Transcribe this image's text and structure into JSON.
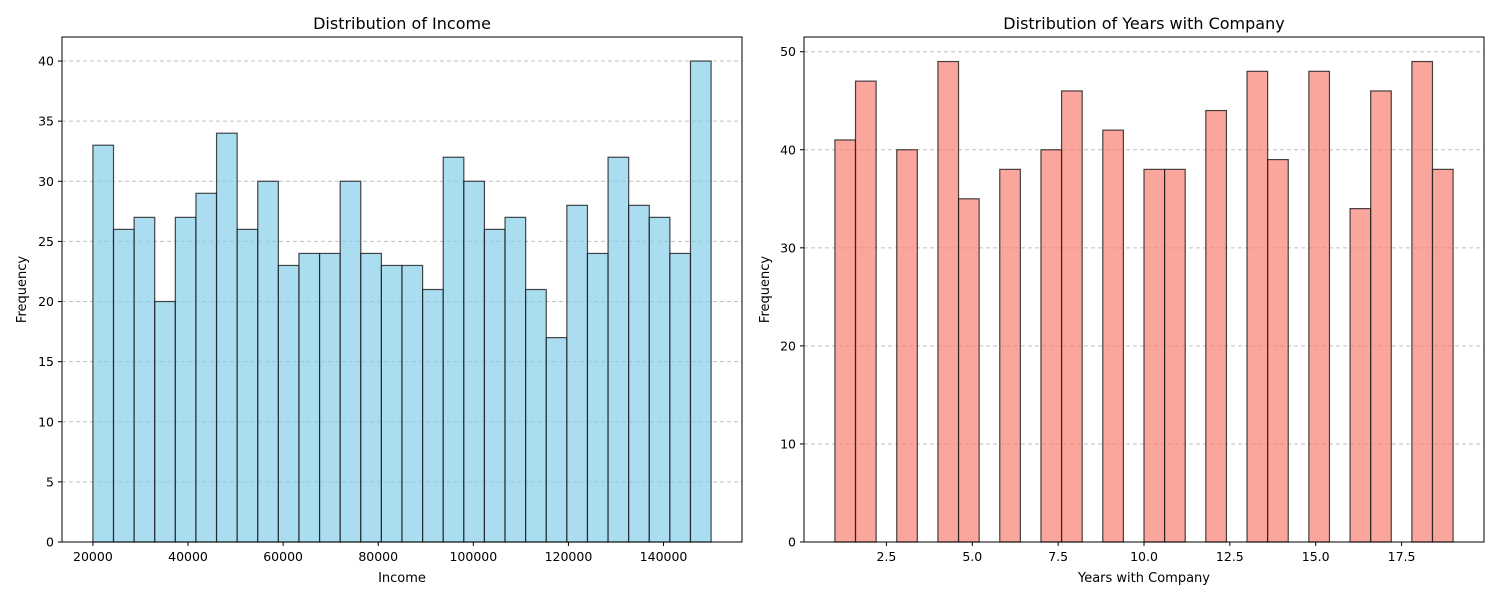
{
  "chart_data": [
    {
      "type": "bar",
      "title": "Distribution of Income",
      "xlabel": "Income",
      "ylabel": "Frequency",
      "color": "#87ceeb",
      "xlim": [
        13500,
        156500
      ],
      "ylim": [
        0,
        42
      ],
      "xticks": [
        20000,
        40000,
        60000,
        80000,
        100000,
        120000,
        140000
      ],
      "xtick_labels": [
        "20000",
        "40000",
        "60000",
        "80000",
        "100000",
        "120000",
        "140000"
      ],
      "yticks": [
        0,
        5,
        10,
        15,
        20,
        25,
        30,
        35,
        40
      ],
      "ytick_labels": [
        "0",
        "5",
        "10",
        "15",
        "20",
        "25",
        "30",
        "35",
        "40"
      ],
      "grid": "y",
      "bins": [
        {
          "x0": 20000,
          "x1": 24333,
          "value": 33
        },
        {
          "x0": 24333,
          "x1": 28667,
          "value": 26
        },
        {
          "x0": 28667,
          "x1": 33000,
          "value": 27
        },
        {
          "x0": 33000,
          "x1": 37333,
          "value": 20
        },
        {
          "x0": 37333,
          "x1": 41667,
          "value": 27
        },
        {
          "x0": 41667,
          "x1": 46000,
          "value": 29
        },
        {
          "x0": 46000,
          "x1": 50333,
          "value": 34
        },
        {
          "x0": 50333,
          "x1": 54667,
          "value": 26
        },
        {
          "x0": 54667,
          "x1": 59000,
          "value": 30
        },
        {
          "x0": 59000,
          "x1": 63333,
          "value": 23
        },
        {
          "x0": 63333,
          "x1": 67667,
          "value": 24
        },
        {
          "x0": 67667,
          "x1": 72000,
          "value": 24
        },
        {
          "x0": 72000,
          "x1": 76333,
          "value": 30
        },
        {
          "x0": 76333,
          "x1": 80667,
          "value": 24
        },
        {
          "x0": 80667,
          "x1": 85000,
          "value": 23
        },
        {
          "x0": 85000,
          "x1": 89333,
          "value": 23
        },
        {
          "x0": 89333,
          "x1": 93667,
          "value": 21
        },
        {
          "x0": 93667,
          "x1": 98000,
          "value": 32
        },
        {
          "x0": 98000,
          "x1": 102333,
          "value": 30
        },
        {
          "x0": 102333,
          "x1": 106667,
          "value": 26
        },
        {
          "x0": 106667,
          "x1": 111000,
          "value": 27
        },
        {
          "x0": 111000,
          "x1": 115333,
          "value": 21
        },
        {
          "x0": 115333,
          "x1": 119667,
          "value": 17
        },
        {
          "x0": 119667,
          "x1": 124000,
          "value": 28
        },
        {
          "x0": 124000,
          "x1": 128333,
          "value": 24
        },
        {
          "x0": 128333,
          "x1": 132667,
          "value": 32
        },
        {
          "x0": 132667,
          "x1": 137000,
          "value": 28
        },
        {
          "x0": 137000,
          "x1": 141333,
          "value": 27
        },
        {
          "x0": 141333,
          "x1": 145667,
          "value": 24
        },
        {
          "x0": 145667,
          "x1": 150000,
          "value": 40
        }
      ]
    },
    {
      "type": "bar",
      "title": "Distribution of Years with Company",
      "xlabel": "Years with Company",
      "ylabel": "Frequency",
      "color": "#fa8072",
      "xlim": [
        0.1,
        19.9
      ],
      "ylim": [
        0,
        51.5
      ],
      "xticks": [
        2.5,
        5.0,
        7.5,
        10.0,
        12.5,
        15.0,
        17.5
      ],
      "xtick_labels": [
        "2.5",
        "5.0",
        "7.5",
        "10.0",
        "12.5",
        "15.0",
        "17.5"
      ],
      "yticks": [
        0,
        10,
        20,
        30,
        40,
        50
      ],
      "ytick_labels": [
        "0",
        "10",
        "20",
        "30",
        "40",
        "50"
      ],
      "grid": "y",
      "bins": [
        {
          "x0": 1.0,
          "x1": 1.6,
          "value": 41
        },
        {
          "x0": 1.6,
          "x1": 2.2,
          "value": 47
        },
        {
          "x0": 2.8,
          "x1": 3.4,
          "value": 40
        },
        {
          "x0": 4.0,
          "x1": 4.6,
          "value": 49
        },
        {
          "x0": 4.6,
          "x1": 5.2,
          "value": 35
        },
        {
          "x0": 5.8,
          "x1": 6.4,
          "value": 38
        },
        {
          "x0": 7.0,
          "x1": 7.6,
          "value": 40
        },
        {
          "x0": 7.6,
          "x1": 8.2,
          "value": 46
        },
        {
          "x0": 8.8,
          "x1": 9.4,
          "value": 42
        },
        {
          "x0": 10.0,
          "x1": 10.6,
          "value": 38
        },
        {
          "x0": 10.6,
          "x1": 11.2,
          "value": 38
        },
        {
          "x0": 11.8,
          "x1": 12.4,
          "value": 44
        },
        {
          "x0": 13.0,
          "x1": 13.6,
          "value": 48
        },
        {
          "x0": 13.6,
          "x1": 14.2,
          "value": 39
        },
        {
          "x0": 14.8,
          "x1": 15.4,
          "value": 48
        },
        {
          "x0": 16.0,
          "x1": 16.6,
          "value": 34
        },
        {
          "x0": 16.6,
          "x1": 17.2,
          "value": 46
        },
        {
          "x0": 17.8,
          "x1": 18.4,
          "value": 49
        },
        {
          "x0": 18.4,
          "x1": 19.0,
          "value": 38
        }
      ]
    }
  ]
}
